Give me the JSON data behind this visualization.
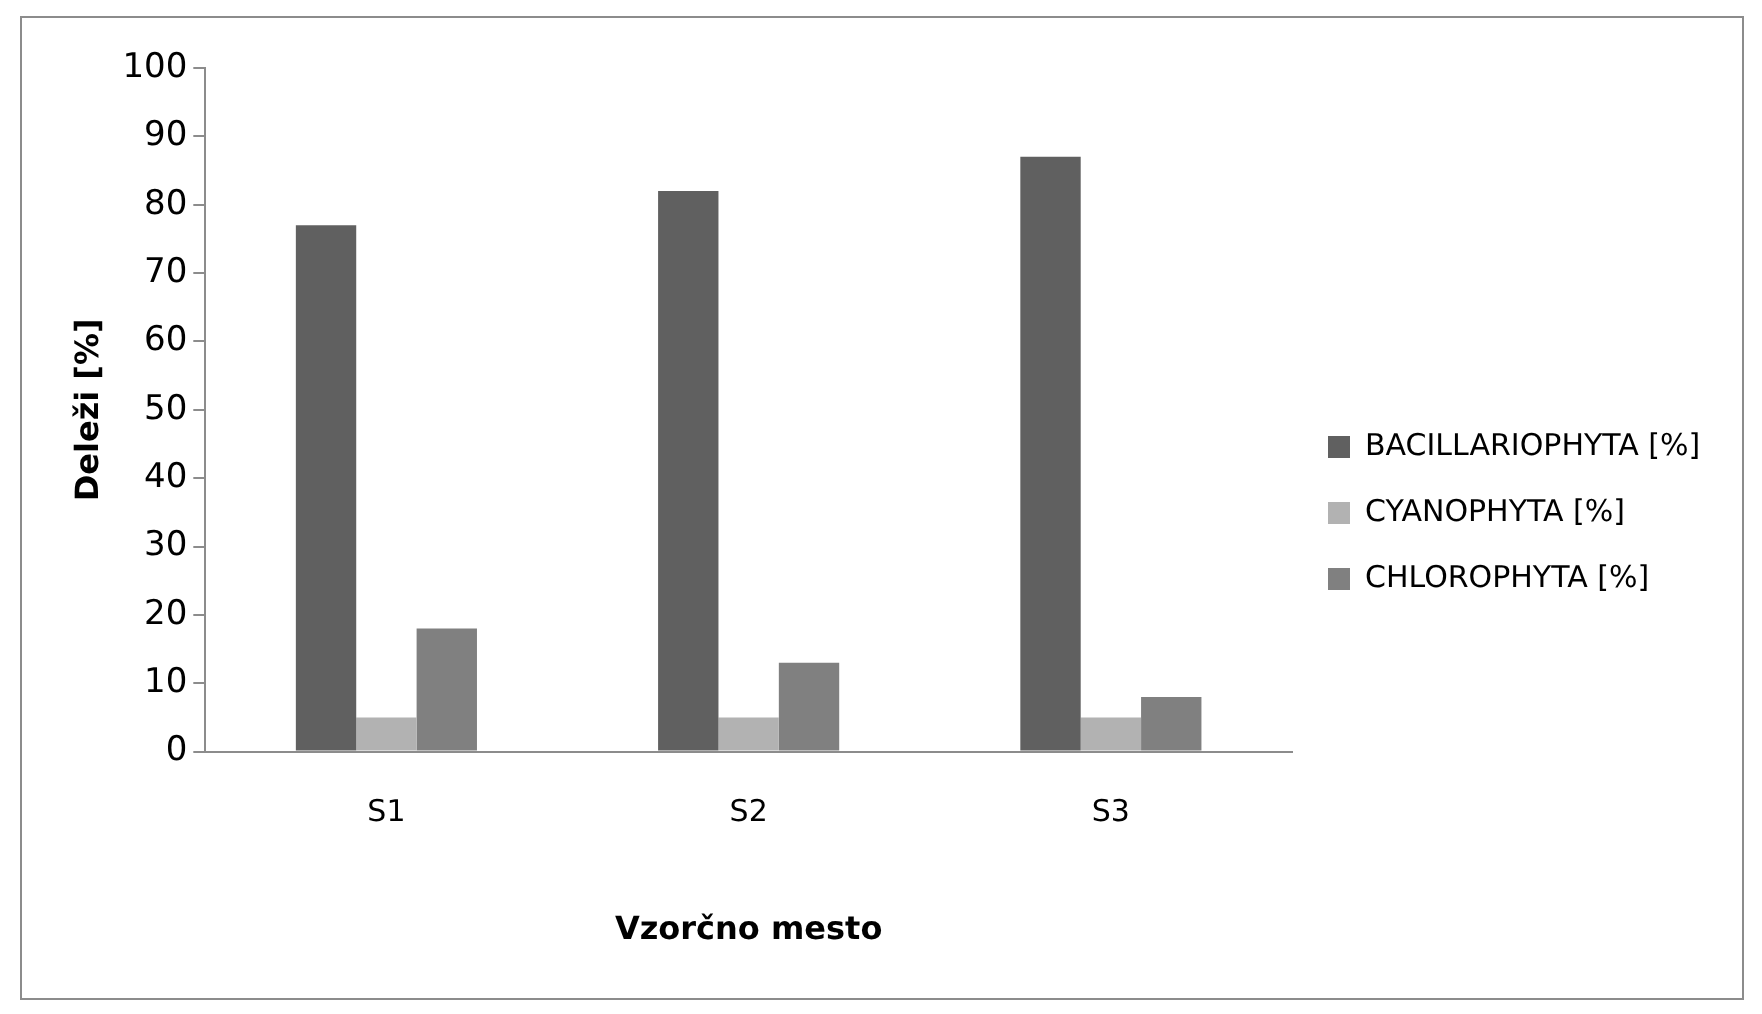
{
  "chart_data": {
    "type": "bar",
    "xlabel": "Vzorčno mesto",
    "ylabel": "Deleži [%]",
    "categories": [
      "S1",
      "S2",
      "S3"
    ],
    "series": [
      {
        "name": "BACILLARIOPHYTA [%]",
        "color": "#606060",
        "values": [
          77,
          82,
          87
        ]
      },
      {
        "name": "CYANOPHYTA [%]",
        "color": "#b2b2b2",
        "values": [
          5,
          5,
          5
        ]
      },
      {
        "name": "CHLOROPHYTA [%]",
        "color": "#808080",
        "values": [
          18,
          13,
          8
        ]
      }
    ],
    "ylim": [
      0,
      100
    ],
    "yticks": [
      0,
      10,
      20,
      30,
      40,
      50,
      60,
      70,
      80,
      90,
      100
    ],
    "grid": false,
    "legend": "right"
  }
}
